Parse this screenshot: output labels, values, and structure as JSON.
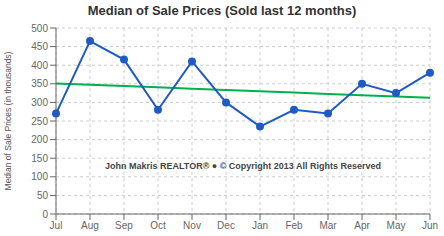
{
  "chart_data": {
    "type": "line",
    "title": "Median of Sale Prices (Sold last 12 months)",
    "ylabel": "Median of Sale Prices (in thousands)",
    "categories": [
      "Jul",
      "Aug",
      "Sep",
      "Oct",
      "Nov",
      "Dec",
      "Jan",
      "Feb",
      "Mar",
      "Apr",
      "May",
      "Jun"
    ],
    "series": [
      {
        "type": "line",
        "color": "#00B050",
        "line_style": "solid",
        "values": [
          351.09,
          347.558,
          344.027,
          340.495,
          336.964,
          333.432,
          329.901,
          326.369,
          322.838,
          319.307,
          315.775,
          312.244
        ]
      },
      {
        "type": "line",
        "color": "#1F5BC4",
        "line_style": "solid",
        "marker": "circle",
        "values": [
          270,
          465,
          415,
          280,
          410,
          300,
          235,
          280,
          270,
          350,
          325,
          380
        ]
      }
    ],
    "ylim": [
      0,
      500
    ],
    "yticks": [
      0,
      50,
      100,
      150,
      200,
      250,
      300,
      350,
      400,
      450,
      500
    ],
    "grid": true,
    "annotations": [
      "John Makris REALTOR®  ●  © Copyright 2013 All Rights Reserved"
    ]
  }
}
